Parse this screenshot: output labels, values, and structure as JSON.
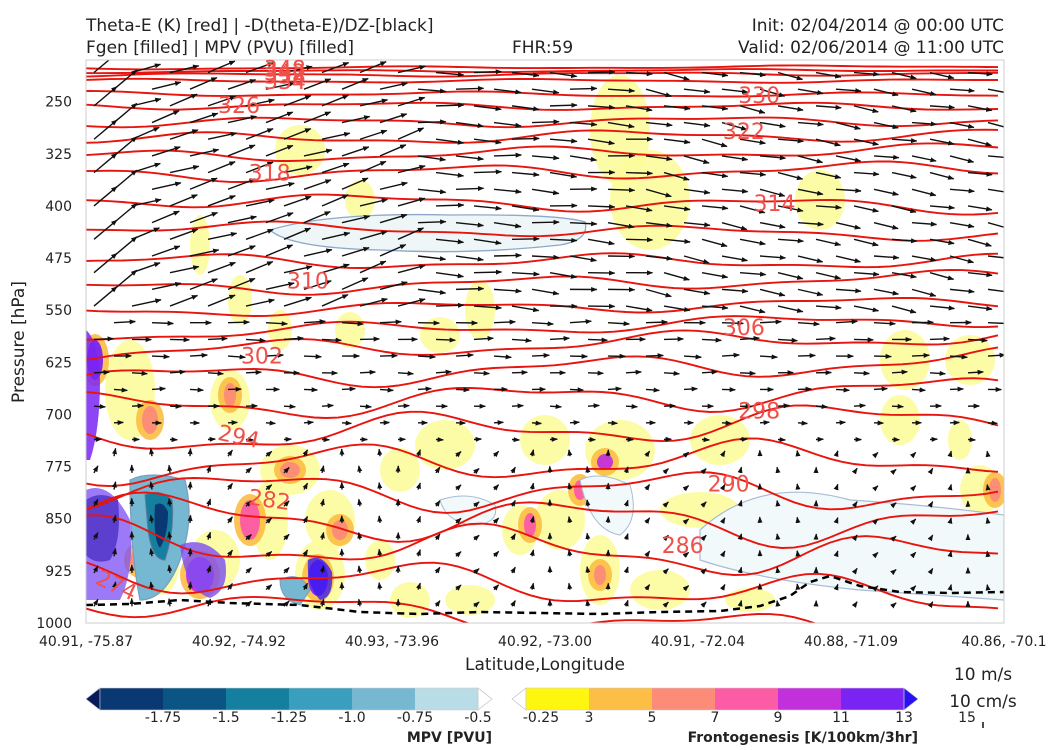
{
  "header": {
    "title_left_1": "Theta-E (K) [red] | -D(theta-E)/DZ-[black]",
    "title_left_2": "Fgen [filled] | MPV (PVU) [filled]",
    "fhr": "FHR:59",
    "init": "Init: 02/04/2014 @ 00:00 UTC",
    "valid": "Valid: 02/06/2014 @ 11:00 UTC"
  },
  "chart_data": {
    "type": "cross-section",
    "title": "Theta-E (K) [red] | -D(theta-E)/DZ-[black] / Fgen [filled] | MPV (PVU) [filled]",
    "xlabel": "Latitude,Longitude",
    "ylabel": "Pressure [hPa]",
    "x_ticks": [
      "40.91, -75.87",
      "40.92, -74.92",
      "40.93, -73.96",
      "40.92, -73.00",
      "40.91, -72.04",
      "40.88, -71.09",
      "40.86, -70.1"
    ],
    "y_ticks": [
      250,
      325,
      400,
      475,
      550,
      625,
      700,
      775,
      850,
      925,
      1000
    ],
    "ylim": [
      1000,
      190
    ],
    "theta_e_labels": [
      {
        "value": "348",
        "x_index": 1.3,
        "p": 202
      },
      {
        "value": "342",
        "x_index": 1.3,
        "p": 207
      },
      {
        "value": "338",
        "x_index": 1.3,
        "p": 212
      },
      {
        "value": "334",
        "x_index": 1.3,
        "p": 220
      },
      {
        "value": "326",
        "x_index": 1.0,
        "p": 255
      },
      {
        "value": "330",
        "x_index": 4.4,
        "p": 240
      },
      {
        "value": "322",
        "x_index": 4.3,
        "p": 292
      },
      {
        "value": "318",
        "x_index": 1.2,
        "p": 352
      },
      {
        "value": "314",
        "x_index": 4.5,
        "p": 396
      },
      {
        "value": "310",
        "x_index": 1.45,
        "p": 507
      },
      {
        "value": "306",
        "x_index": 4.3,
        "p": 574
      },
      {
        "value": "302",
        "x_index": 1.15,
        "p": 615
      },
      {
        "value": "298",
        "x_index": 4.4,
        "p": 694
      },
      {
        "value": "294",
        "x_index": 1.0,
        "p": 731
      },
      {
        "value": "290",
        "x_index": 4.2,
        "p": 799
      },
      {
        "value": "282",
        "x_index": 1.2,
        "p": 822
      },
      {
        "value": "286",
        "x_index": 3.9,
        "p": 888
      },
      {
        "value": "274",
        "x_index": 0.2,
        "p": 945
      }
    ],
    "mpv_colorbar": {
      "label": "MPV [PVU]",
      "ticks": [
        "-1.75",
        "-1.5",
        "-1.25",
        "-1.0",
        "-0.75",
        "-0.5",
        "-0.25"
      ],
      "colors": [
        "#071a5c",
        "#0a3872",
        "#0b5585",
        "#147f9f",
        "#3a9fbe",
        "#76b8d1",
        "#b9dde6",
        "#ffffff"
      ]
    },
    "fgen_colorbar": {
      "label": "Frontogenesis [K/100km/3hr]",
      "ticks": [
        "3",
        "5",
        "7",
        "9",
        "11",
        "13",
        "15"
      ],
      "colors": [
        "#ffffff",
        "#fff60f",
        "#fcbe44",
        "#fc8b78",
        "#fc5ba6",
        "#c230dc",
        "#7a24f4",
        "#2a10f5"
      ]
    },
    "wind_reference": {
      "label_1": "10 m/s",
      "label_2": "10 cm/s"
    }
  }
}
